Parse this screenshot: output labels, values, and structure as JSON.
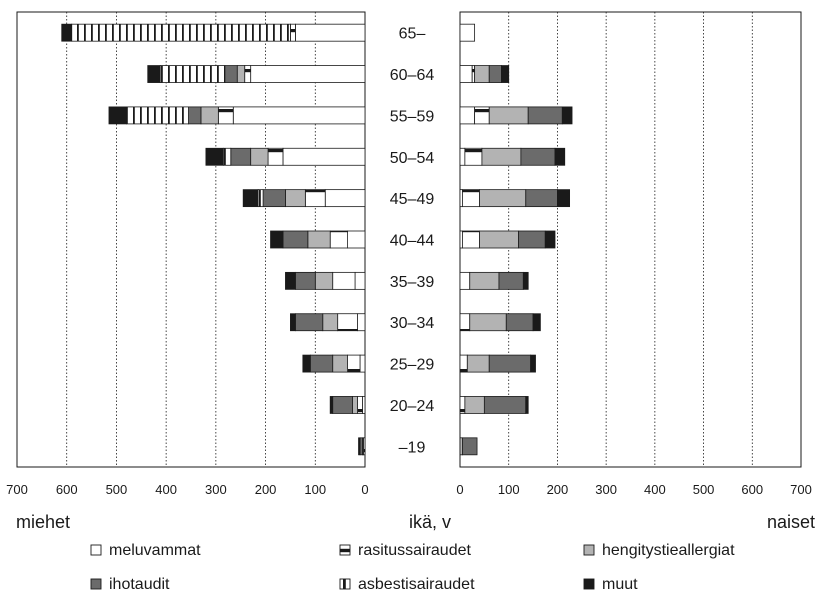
{
  "chart_data": {
    "type": "bar",
    "orientation": "horizontal",
    "layout": "population pyramid (stacked)",
    "xlabel_left": "miehet",
    "xlabel_center": "ikä, v",
    "xlabel_right": "naiset",
    "xlim_left": [
      700,
      0
    ],
    "xlim_right": [
      0,
      700
    ],
    "ticks": [
      0,
      100,
      200,
      300,
      400,
      500,
      600,
      700
    ],
    "grid": "vertical dotted",
    "legend_position": "bottom",
    "categories": [
      "65–",
      "60–64",
      "55–59",
      "50–54",
      "45–49",
      "40–44",
      "35–39",
      "30–34",
      "25–29",
      "20–24",
      "–19"
    ],
    "series": [
      {
        "key": "meluvammat",
        "name": "meluvammat",
        "color": "#ffffff",
        "pattern": "plain",
        "men": [
          140,
          230,
          265,
          165,
          80,
          35,
          20,
          15,
          10,
          5,
          0
        ],
        "women": [
          30,
          25,
          30,
          10,
          5,
          5,
          0,
          0,
          0,
          0,
          0
        ]
      },
      {
        "key": "rasitussairaudet",
        "name": "rasitussairaudet",
        "color": "#ffffff",
        "pattern": "hbar",
        "men": [
          10,
          12,
          30,
          30,
          40,
          35,
          45,
          40,
          25,
          10,
          3
        ],
        "women": [
          0,
          5,
          30,
          35,
          35,
          35,
          20,
          20,
          15,
          10,
          0
        ]
      },
      {
        "key": "hengitystieallergiat",
        "name": "hengitystieallergiat",
        "color": "#b3b3b3",
        "pattern": "plain",
        "men": [
          0,
          15,
          35,
          35,
          40,
          45,
          35,
          30,
          30,
          10,
          2
        ],
        "women": [
          0,
          30,
          80,
          80,
          95,
          80,
          60,
          75,
          45,
          40,
          5
        ]
      },
      {
        "key": "ihotaudit",
        "name": "ihotaudit",
        "color": "#6b6b6b",
        "pattern": "plain",
        "men": [
          0,
          25,
          25,
          40,
          45,
          50,
          40,
          55,
          45,
          40,
          5
        ],
        "women": [
          0,
          25,
          70,
          70,
          65,
          55,
          50,
          55,
          85,
          85,
          30
        ]
      },
      {
        "key": "asbestisairaudet",
        "name": "asbestisairaudet",
        "color": "#ffffff",
        "pattern": "vbar",
        "men": [
          440,
          130,
          125,
          15,
          10,
          0,
          0,
          0,
          0,
          0,
          0
        ],
        "women": [
          0,
          0,
          0,
          0,
          0,
          0,
          0,
          0,
          0,
          0,
          0
        ]
      },
      {
        "key": "muut",
        "name": "muut",
        "color": "#1a1a1a",
        "pattern": "plain",
        "men": [
          20,
          25,
          35,
          35,
          30,
          25,
          20,
          10,
          15,
          5,
          3
        ],
        "women": [
          0,
          15,
          20,
          20,
          25,
          20,
          10,
          15,
          10,
          5,
          0
        ]
      }
    ]
  }
}
